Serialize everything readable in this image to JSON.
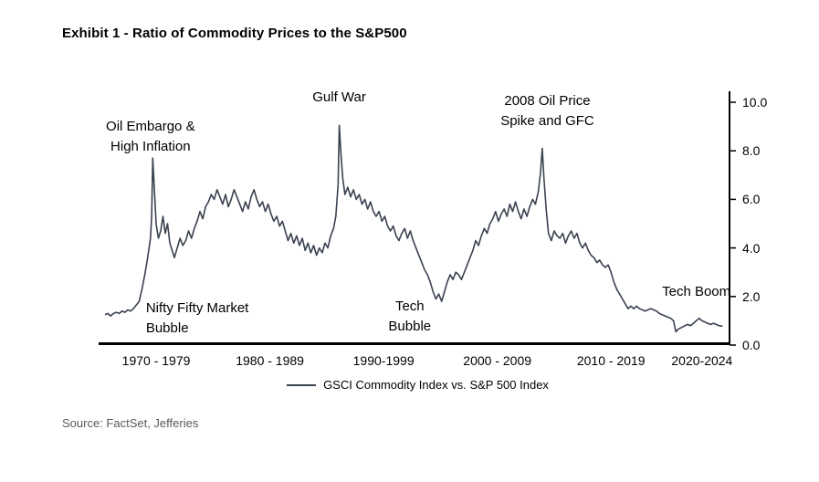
{
  "page": {
    "title": "Exhibit 1 - Ratio of Commodity Prices to the S&P500",
    "source": "Source: FactSet, Jefferies"
  },
  "legend": {
    "label": "GSCI Commodity Index vs. S&P 500 Index"
  },
  "chart_data": {
    "type": "line",
    "title": "Exhibit 1 - Ratio of Commodity Prices to the S&P500",
    "grid": false,
    "legend_position": "bottom",
    "x_axis": {
      "min": 1970,
      "max": 2025,
      "ticks": [
        {
          "label": "1970 - 1979",
          "center": 1974.5
        },
        {
          "label": "1980 - 1989",
          "center": 1984.5
        },
        {
          "label": "1990-1999",
          "center": 1994.5
        },
        {
          "label": "2000 - 2009",
          "center": 2004.5
        },
        {
          "label": "2010 - 2019",
          "center": 2014.5
        },
        {
          "label": "2020-2024",
          "center": 2022.5
        }
      ]
    },
    "y_axis": {
      "min": 0,
      "max": 10,
      "position": "right",
      "ticks": [
        {
          "value": 0,
          "label": "0.0"
        },
        {
          "value": 2,
          "label": "2.0"
        },
        {
          "value": 4,
          "label": "4.0"
        },
        {
          "value": 6,
          "label": "6.0"
        },
        {
          "value": 8,
          "label": "8.0"
        },
        {
          "value": 10,
          "label": "10.0"
        }
      ]
    },
    "annotations": [
      {
        "lines": [
          "Oil Embargo &",
          "High Inflation"
        ],
        "x": 1974.0,
        "y": 9.4,
        "align": "center"
      },
      {
        "lines": [
          "Gulf War"
        ],
        "x": 1990.6,
        "y": 10.6,
        "align": "center"
      },
      {
        "lines": [
          "2008 Oil Price",
          "Spike and GFC"
        ],
        "x": 2008.9,
        "y": 10.45,
        "align": "center"
      },
      {
        "lines": [
          "Nifty Fifty Market",
          "Bubble"
        ],
        "x": 1973.6,
        "y": 1.9,
        "align": "left"
      },
      {
        "lines": [
          "Tech",
          "Bubble"
        ],
        "x": 1996.8,
        "y": 2.0,
        "align": "center"
      },
      {
        "lines": [
          "Tech Boom"
        ],
        "x": 2022.0,
        "y": 2.6,
        "align": "center"
      }
    ],
    "series": [
      {
        "name": "GSCI Commodity Index vs. S&P 500 Index",
        "color": "#3a4250",
        "points": [
          [
            1970,
            1.25
          ],
          [
            1970.25,
            1.3
          ],
          [
            1970.5,
            1.2
          ],
          [
            1970.75,
            1.3
          ],
          [
            1971,
            1.35
          ],
          [
            1971.25,
            1.3
          ],
          [
            1971.5,
            1.4
          ],
          [
            1971.75,
            1.35
          ],
          [
            1972,
            1.45
          ],
          [
            1972.25,
            1.4
          ],
          [
            1972.5,
            1.5
          ],
          [
            1972.75,
            1.65
          ],
          [
            1973,
            1.8
          ],
          [
            1973.25,
            2.3
          ],
          [
            1973.5,
            2.9
          ],
          [
            1973.75,
            3.6
          ],
          [
            1974,
            4.4
          ],
          [
            1974.1,
            5.3
          ],
          [
            1974.2,
            7.7
          ],
          [
            1974.35,
            6.3
          ],
          [
            1974.5,
            5.0
          ],
          [
            1974.7,
            4.4
          ],
          [
            1974.9,
            4.7
          ],
          [
            1975.1,
            5.3
          ],
          [
            1975.3,
            4.6
          ],
          [
            1975.5,
            5.0
          ],
          [
            1975.7,
            4.2
          ],
          [
            1975.9,
            3.9
          ],
          [
            1976.1,
            3.6
          ],
          [
            1976.35,
            4.0
          ],
          [
            1976.6,
            4.4
          ],
          [
            1976.85,
            4.1
          ],
          [
            1977.1,
            4.3
          ],
          [
            1977.35,
            4.7
          ],
          [
            1977.6,
            4.4
          ],
          [
            1977.85,
            4.8
          ],
          [
            1978.1,
            5.1
          ],
          [
            1978.35,
            5.5
          ],
          [
            1978.6,
            5.2
          ],
          [
            1978.85,
            5.7
          ],
          [
            1979.1,
            5.9
          ],
          [
            1979.35,
            6.2
          ],
          [
            1979.6,
            6.0
          ],
          [
            1979.85,
            6.4
          ],
          [
            1980.1,
            6.1
          ],
          [
            1980.35,
            5.8
          ],
          [
            1980.6,
            6.2
          ],
          [
            1980.85,
            5.7
          ],
          [
            1981.1,
            6.0
          ],
          [
            1981.35,
            6.4
          ],
          [
            1981.6,
            6.1
          ],
          [
            1981.85,
            5.8
          ],
          [
            1982.1,
            5.5
          ],
          [
            1982.35,
            5.9
          ],
          [
            1982.6,
            5.6
          ],
          [
            1982.85,
            6.1
          ],
          [
            1983.1,
            6.4
          ],
          [
            1983.35,
            6.0
          ],
          [
            1983.6,
            5.7
          ],
          [
            1983.85,
            5.9
          ],
          [
            1984.1,
            5.5
          ],
          [
            1984.35,
            5.8
          ],
          [
            1984.6,
            5.4
          ],
          [
            1984.85,
            5.1
          ],
          [
            1985.1,
            5.3
          ],
          [
            1985.35,
            4.9
          ],
          [
            1985.6,
            5.1
          ],
          [
            1985.85,
            4.7
          ],
          [
            1986.1,
            4.3
          ],
          [
            1986.35,
            4.6
          ],
          [
            1986.6,
            4.2
          ],
          [
            1986.85,
            4.5
          ],
          [
            1987.1,
            4.1
          ],
          [
            1987.35,
            4.4
          ],
          [
            1987.6,
            3.9
          ],
          [
            1987.85,
            4.2
          ],
          [
            1988.1,
            3.8
          ],
          [
            1988.35,
            4.1
          ],
          [
            1988.6,
            3.7
          ],
          [
            1988.85,
            4.0
          ],
          [
            1989.1,
            3.8
          ],
          [
            1989.35,
            4.2
          ],
          [
            1989.6,
            4.0
          ],
          [
            1989.85,
            4.5
          ],
          [
            1990.1,
            4.8
          ],
          [
            1990.3,
            5.3
          ],
          [
            1990.5,
            6.6
          ],
          [
            1990.6,
            9.05
          ],
          [
            1990.75,
            7.9
          ],
          [
            1990.9,
            6.9
          ],
          [
            1991.1,
            6.2
          ],
          [
            1991.35,
            6.5
          ],
          [
            1991.6,
            6.1
          ],
          [
            1991.85,
            6.4
          ],
          [
            1992.1,
            6.0
          ],
          [
            1992.35,
            6.2
          ],
          [
            1992.6,
            5.8
          ],
          [
            1992.85,
            6.0
          ],
          [
            1993.1,
            5.6
          ],
          [
            1993.35,
            5.9
          ],
          [
            1993.6,
            5.5
          ],
          [
            1993.85,
            5.3
          ],
          [
            1994.1,
            5.5
          ],
          [
            1994.35,
            5.1
          ],
          [
            1994.6,
            5.3
          ],
          [
            1994.85,
            4.9
          ],
          [
            1995.1,
            4.7
          ],
          [
            1995.35,
            4.9
          ],
          [
            1995.6,
            4.5
          ],
          [
            1995.85,
            4.3
          ],
          [
            1996.1,
            4.6
          ],
          [
            1996.35,
            4.8
          ],
          [
            1996.6,
            4.4
          ],
          [
            1996.85,
            4.7
          ],
          [
            1997.1,
            4.3
          ],
          [
            1997.35,
            4.0
          ],
          [
            1997.6,
            3.7
          ],
          [
            1997.85,
            3.4
          ],
          [
            1998.1,
            3.1
          ],
          [
            1998.35,
            2.9
          ],
          [
            1998.6,
            2.6
          ],
          [
            1998.85,
            2.2
          ],
          [
            1999.1,
            1.9
          ],
          [
            1999.35,
            2.1
          ],
          [
            1999.6,
            1.8
          ],
          [
            1999.85,
            2.2
          ],
          [
            2000.1,
            2.6
          ],
          [
            2000.35,
            2.9
          ],
          [
            2000.6,
            2.7
          ],
          [
            2000.85,
            3.0
          ],
          [
            2001.1,
            2.9
          ],
          [
            2001.35,
            2.7
          ],
          [
            2001.6,
            3.0
          ],
          [
            2001.85,
            3.3
          ],
          [
            2002.1,
            3.6
          ],
          [
            2002.35,
            3.9
          ],
          [
            2002.6,
            4.3
          ],
          [
            2002.85,
            4.1
          ],
          [
            2003.1,
            4.5
          ],
          [
            2003.35,
            4.8
          ],
          [
            2003.6,
            4.6
          ],
          [
            2003.85,
            5.0
          ],
          [
            2004.1,
            5.2
          ],
          [
            2004.35,
            5.5
          ],
          [
            2004.6,
            5.1
          ],
          [
            2004.85,
            5.4
          ],
          [
            2005.1,
            5.6
          ],
          [
            2005.35,
            5.3
          ],
          [
            2005.6,
            5.8
          ],
          [
            2005.85,
            5.5
          ],
          [
            2006.1,
            5.9
          ],
          [
            2006.35,
            5.5
          ],
          [
            2006.6,
            5.2
          ],
          [
            2006.85,
            5.6
          ],
          [
            2007.1,
            5.3
          ],
          [
            2007.35,
            5.7
          ],
          [
            2007.6,
            6.0
          ],
          [
            2007.85,
            5.8
          ],
          [
            2008.1,
            6.3
          ],
          [
            2008.3,
            7.1
          ],
          [
            2008.45,
            8.1
          ],
          [
            2008.6,
            6.9
          ],
          [
            2008.8,
            5.6
          ],
          [
            2009,
            4.6
          ],
          [
            2009.25,
            4.3
          ],
          [
            2009.5,
            4.7
          ],
          [
            2009.75,
            4.5
          ],
          [
            2010,
            4.4
          ],
          [
            2010.25,
            4.6
          ],
          [
            2010.5,
            4.2
          ],
          [
            2010.75,
            4.5
          ],
          [
            2011,
            4.7
          ],
          [
            2011.25,
            4.4
          ],
          [
            2011.5,
            4.6
          ],
          [
            2011.75,
            4.2
          ],
          [
            2012,
            4.0
          ],
          [
            2012.25,
            4.2
          ],
          [
            2012.5,
            3.9
          ],
          [
            2012.75,
            3.7
          ],
          [
            2013,
            3.6
          ],
          [
            2013.25,
            3.4
          ],
          [
            2013.5,
            3.5
          ],
          [
            2013.75,
            3.3
          ],
          [
            2014,
            3.2
          ],
          [
            2014.25,
            3.3
          ],
          [
            2014.5,
            3.0
          ],
          [
            2014.75,
            2.6
          ],
          [
            2015,
            2.3
          ],
          [
            2015.25,
            2.1
          ],
          [
            2015.5,
            1.9
          ],
          [
            2015.75,
            1.7
          ],
          [
            2016,
            1.5
          ],
          [
            2016.25,
            1.6
          ],
          [
            2016.5,
            1.5
          ],
          [
            2016.75,
            1.6
          ],
          [
            2017,
            1.5
          ],
          [
            2017.25,
            1.45
          ],
          [
            2017.5,
            1.4
          ],
          [
            2017.75,
            1.45
          ],
          [
            2018,
            1.5
          ],
          [
            2018.25,
            1.45
          ],
          [
            2018.5,
            1.4
          ],
          [
            2018.75,
            1.3
          ],
          [
            2019,
            1.25
          ],
          [
            2019.25,
            1.2
          ],
          [
            2019.5,
            1.15
          ],
          [
            2019.75,
            1.1
          ],
          [
            2020,
            1.0
          ],
          [
            2020.2,
            0.55
          ],
          [
            2020.4,
            0.65
          ],
          [
            2020.6,
            0.7
          ],
          [
            2020.8,
            0.75
          ],
          [
            2021,
            0.8
          ],
          [
            2021.25,
            0.85
          ],
          [
            2021.5,
            0.8
          ],
          [
            2021.75,
            0.9
          ],
          [
            2022,
            1.0
          ],
          [
            2022.25,
            1.1
          ],
          [
            2022.5,
            1.0
          ],
          [
            2022.75,
            0.95
          ],
          [
            2023,
            0.9
          ],
          [
            2023.25,
            0.85
          ],
          [
            2023.5,
            0.9
          ],
          [
            2023.75,
            0.85
          ],
          [
            2024,
            0.8
          ],
          [
            2024.3,
            0.78
          ]
        ]
      }
    ]
  }
}
